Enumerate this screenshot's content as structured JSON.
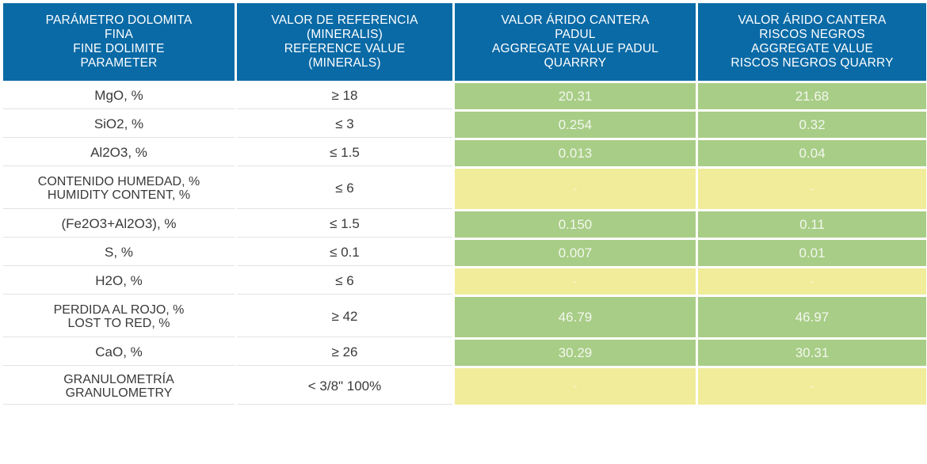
{
  "header": {
    "col1": [
      "PARÁMETRO DOLOMITA",
      "FINA",
      "FINE DOLIMITE",
      "PARAMETER"
    ],
    "col2": [
      "VALOR DE REFERENCIA",
      "(MINERALIS)",
      "REFERENCE VALUE",
      "(MINERALS)"
    ],
    "col3": [
      "VALOR ÁRIDO CANTERA",
      "PADUL",
      "AGGREGATE VALUE PADUL",
      "QUARRRY"
    ],
    "col4": [
      "VALOR ÁRIDO CANTERA",
      "RISCOS NEGROS",
      "AGGREGATE VALUE",
      "RISCOS NEGROS QUARRY"
    ]
  },
  "rows": [
    {
      "param": [
        "MgO, %"
      ],
      "ref": "≥ 18",
      "padul": "20.31",
      "riscos": "21.68",
      "status": "green"
    },
    {
      "param": [
        "SiO2, %"
      ],
      "ref": "≤ 3",
      "padul": "0.254",
      "riscos": "0.32",
      "status": "green"
    },
    {
      "param": [
        "Al2O3, %"
      ],
      "ref": "≤ 1.5",
      "padul": "0.013",
      "riscos": "0.04",
      "status": "green"
    },
    {
      "param": [
        "CONTENIDO HUMEDAD, %",
        "HUMIDITY CONTENT, %"
      ],
      "ref": "≤ 6",
      "padul": "-",
      "riscos": "-",
      "status": "yellow"
    },
    {
      "param": [
        "(Fe2O3+Al2O3), %"
      ],
      "ref": "≤ 1.5",
      "padul": "0.150",
      "riscos": "0.11",
      "status": "green"
    },
    {
      "param": [
        "S, %"
      ],
      "ref": "≤ 0.1",
      "padul": "0.007",
      "riscos": "0.01",
      "status": "green"
    },
    {
      "param": [
        "H2O, %"
      ],
      "ref": "≤ 6",
      "padul": "-",
      "riscos": "-",
      "status": "yellow"
    },
    {
      "param": [
        "PERDIDA AL ROJO, %",
        "LOST TO RED, %"
      ],
      "ref": "≥ 42",
      "padul": "46.79",
      "riscos": "46.97",
      "status": "green"
    },
    {
      "param": [
        "CaO, %"
      ],
      "ref": "≥ 26",
      "padul": "30.29",
      "riscos": "30.31",
      "status": "green"
    },
    {
      "param": [
        "GRANULOMETRÍA",
        "GRANULOMETRY"
      ],
      "ref": "< 3/8\" 100%",
      "padul": "-",
      "riscos": "-",
      "status": "yellow"
    }
  ],
  "colors": {
    "header": "#0a6aa6",
    "green": "#a8cd86",
    "yellow": "#f0ec9a"
  }
}
